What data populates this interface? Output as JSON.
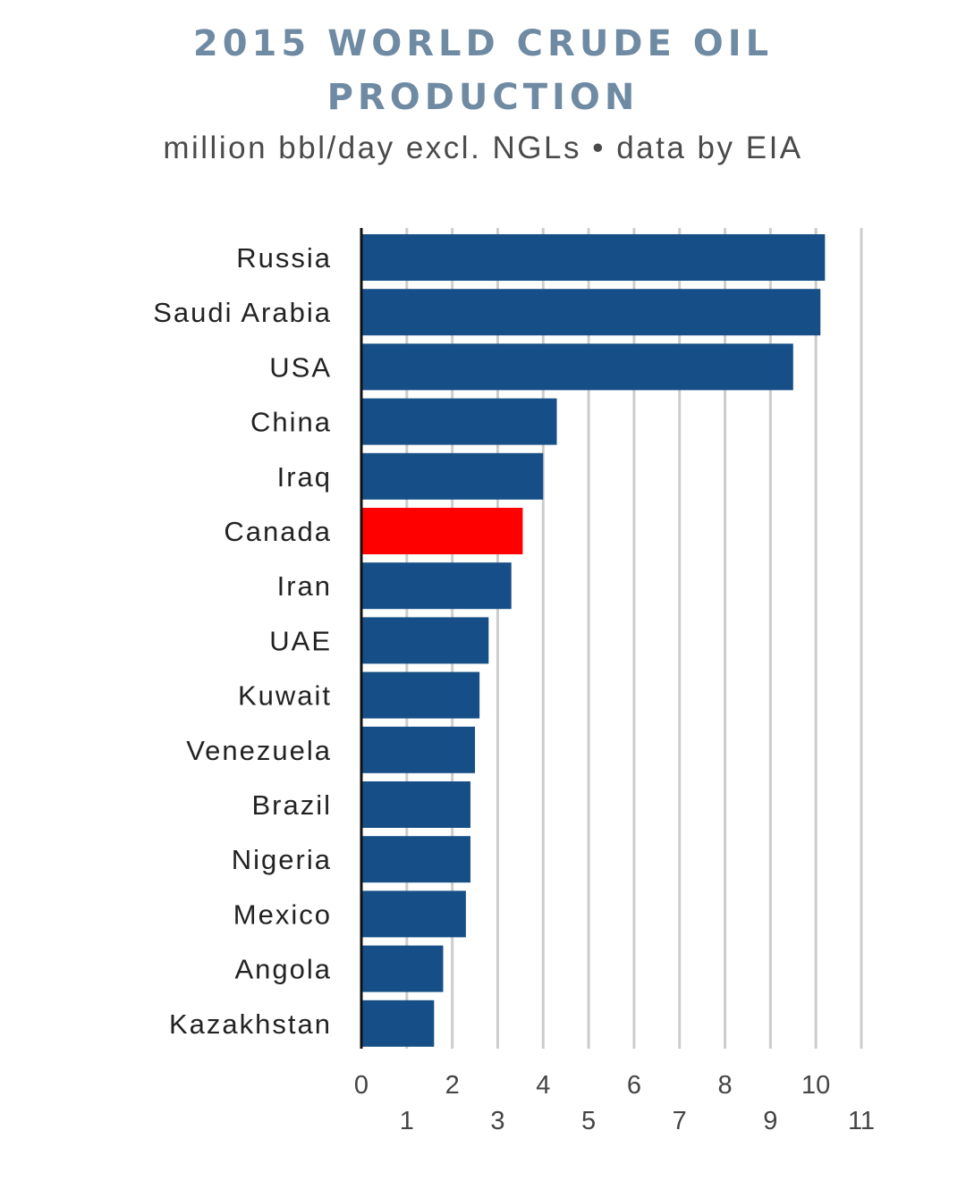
{
  "header": {
    "title_line_1": "2015 WORLD CRUDE OIL",
    "title_line_2": "PRODUCTION",
    "subtitle": "million bbl/day excl. NGLs • data by EIA"
  },
  "colors": {
    "bar_default": "#164f87",
    "bar_highlight": "#ff0000",
    "gridline": "#cccccc",
    "axis": "#111111"
  },
  "chart_data": {
    "type": "bar",
    "orientation": "horizontal",
    "title": "2015 WORLD CRUDE OIL PRODUCTION",
    "subtitle": "million bbl/day excl. NGLs • data by EIA",
    "xlabel": "",
    "ylabel": "",
    "xlim": [
      0,
      11
    ],
    "x_ticks": [
      0,
      1,
      2,
      3,
      4,
      5,
      6,
      7,
      8,
      9,
      10,
      11
    ],
    "grid": "vertical",
    "legend": "none",
    "categories": [
      "Russia",
      "Saudi Arabia",
      "USA",
      "China",
      "Iraq",
      "Canada",
      "Iran",
      "UAE",
      "Kuwait",
      "Venezuela",
      "Brazil",
      "Nigeria",
      "Mexico",
      "Angola",
      "Kazakhstan"
    ],
    "values": [
      10.2,
      10.1,
      9.5,
      4.3,
      4.0,
      3.55,
      3.3,
      2.8,
      2.6,
      2.5,
      2.4,
      2.4,
      2.3,
      1.8,
      1.6
    ],
    "highlight": "Canada"
  }
}
